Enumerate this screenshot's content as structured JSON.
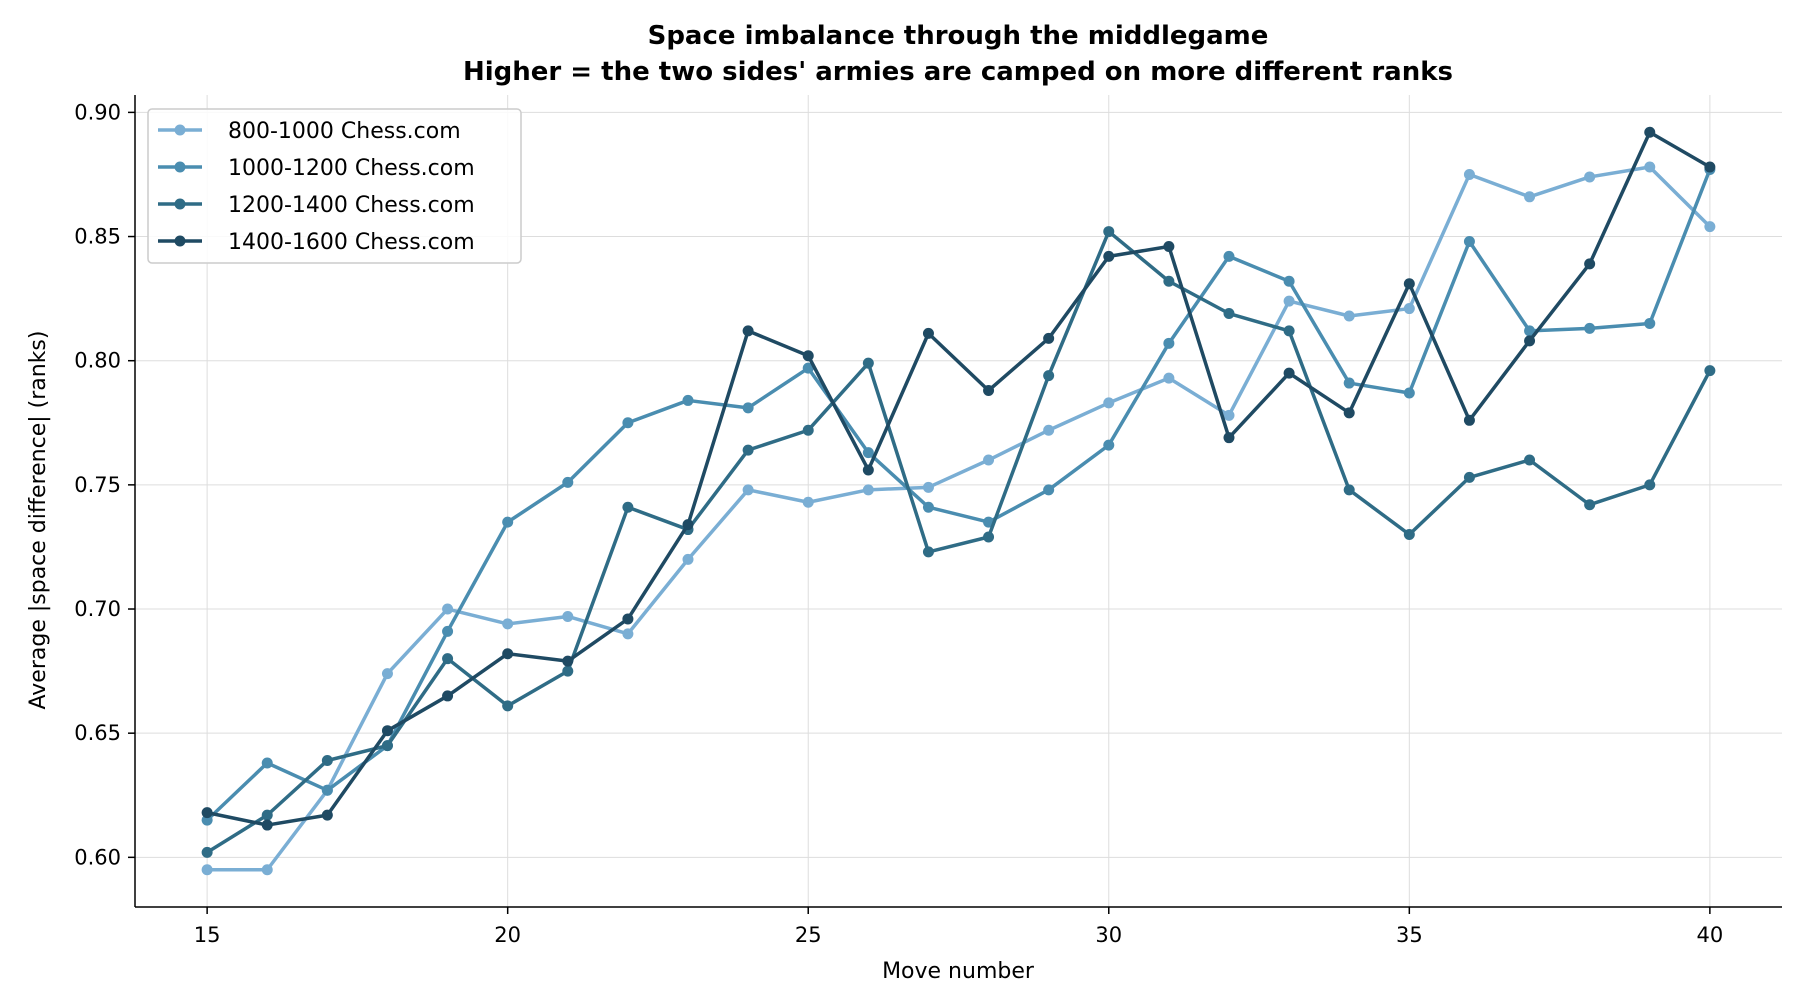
{
  "chart_data": {
    "type": "line",
    "title": "Space imbalance through the middlegame",
    "subtitle": "Higher = the two sides' armies are camped on more different ranks",
    "xlabel": "Move number",
    "ylabel": "Average |space difference| (ranks)",
    "xlim": [
      13.8,
      41.2
    ],
    "ylim": [
      0.58,
      0.907
    ],
    "xticks": [
      15,
      20,
      25,
      30,
      35,
      40
    ],
    "yticks": [
      0.6,
      0.65,
      0.7,
      0.75,
      0.8,
      0.85,
      0.9
    ],
    "ytick_labels": [
      "0.60",
      "0.65",
      "0.70",
      "0.75",
      "0.80",
      "0.85",
      "0.90"
    ],
    "grid": true,
    "legend_position": "top-left",
    "x": [
      15,
      16,
      17,
      18,
      19,
      20,
      21,
      22,
      23,
      24,
      25,
      26,
      27,
      28,
      29,
      30,
      31,
      32,
      33,
      34,
      35,
      36,
      37,
      38,
      39,
      40
    ],
    "series": [
      {
        "name": "800-1000 Chess.com",
        "color": "#7aaed4",
        "values": [
          0.595,
          0.595,
          0.627,
          0.674,
          0.7,
          0.694,
          0.697,
          0.69,
          0.72,
          0.748,
          0.743,
          0.748,
          0.749,
          0.76,
          0.772,
          0.783,
          0.793,
          0.778,
          0.824,
          0.818,
          0.821,
          0.875,
          0.866,
          0.874,
          0.878,
          0.854
        ]
      },
      {
        "name": "1000-1200 Chess.com",
        "color": "#4a8db0",
        "values": [
          0.615,
          0.638,
          0.627,
          0.645,
          0.691,
          0.735,
          0.751,
          0.775,
          0.784,
          0.781,
          0.797,
          0.763,
          0.741,
          0.735,
          0.748,
          0.766,
          0.807,
          0.842,
          0.832,
          0.791,
          0.787,
          0.848,
          0.812,
          0.813,
          0.815,
          0.877
        ]
      },
      {
        "name": "1200-1400 Chess.com",
        "color": "#2f6c86",
        "values": [
          0.602,
          0.617,
          0.639,
          0.645,
          0.68,
          0.661,
          0.675,
          0.741,
          0.732,
          0.764,
          0.772,
          0.799,
          0.723,
          0.729,
          0.794,
          0.852,
          0.832,
          0.819,
          0.812,
          0.748,
          0.73,
          0.753,
          0.76,
          0.742,
          0.75,
          0.796
        ]
      },
      {
        "name": "1400-1600 Chess.com",
        "color": "#1f4a63",
        "values": [
          0.618,
          0.613,
          0.617,
          0.651,
          0.665,
          0.682,
          0.679,
          0.696,
          0.734,
          0.812,
          0.802,
          0.756,
          0.811,
          0.788,
          0.809,
          0.842,
          0.846,
          0.769,
          0.795,
          0.779,
          0.831,
          0.776,
          0.808,
          0.839,
          0.892,
          0.878
        ]
      }
    ]
  }
}
